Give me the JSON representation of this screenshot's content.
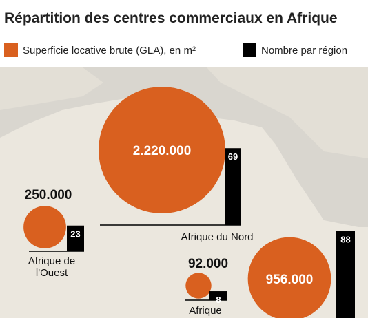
{
  "chart_data": {
    "type": "bubble",
    "title": "Répartition des centres commerciaux en Afrique",
    "categories": [
      "Afrique du Nord",
      "Afrique de l'Ouest",
      "Afrique",
      null
    ],
    "series": [
      {
        "name": "Superficie locative brute (GLA), en m²",
        "color": "#d9601f",
        "values": [
          2220000,
          250000,
          92000,
          956000
        ],
        "value_labels": [
          "2.220.000",
          "250.000",
          "92.000",
          "956.000"
        ]
      },
      {
        "name": "Nombre par région",
        "color": "#000000",
        "values": [
          69,
          23,
          8,
          88
        ]
      }
    ]
  }
}
